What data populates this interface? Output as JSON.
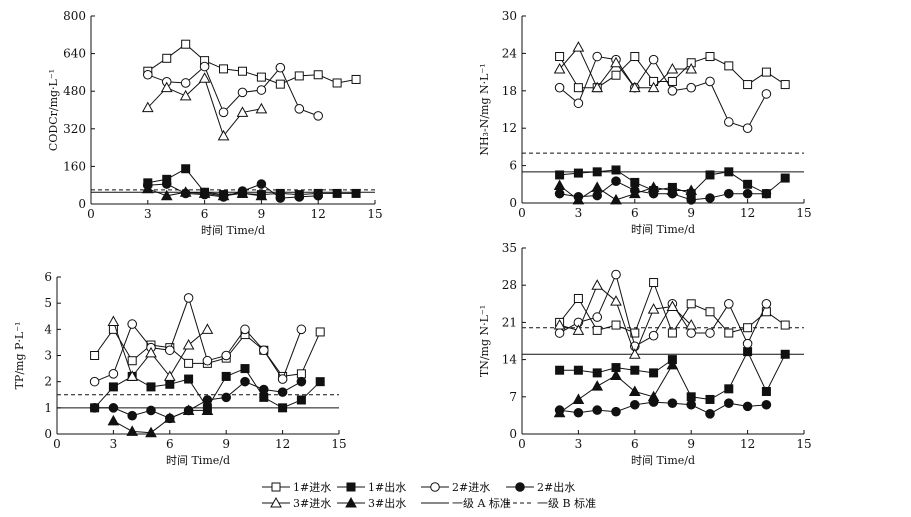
{
  "legend": {
    "items": [
      {
        "key": "in1",
        "label": "1#进水",
        "marker": "square-open",
        "line": "solid"
      },
      {
        "key": "out1",
        "label": "1#出水",
        "marker": "square-filled",
        "line": "solid"
      },
      {
        "key": "in2",
        "label": "2#进水",
        "marker": "circle-open",
        "line": "solid"
      },
      {
        "key": "out2",
        "label": "2#出水",
        "marker": "circle-filled",
        "line": "solid"
      },
      {
        "key": "in3",
        "label": "3#进水",
        "marker": "triangle-open",
        "line": "solid"
      },
      {
        "key": "out3",
        "label": "3#出水",
        "marker": "triangle-filled",
        "line": "solid"
      },
      {
        "key": "stdA",
        "label": "一级 A 标准",
        "marker": "none",
        "line": "solid"
      },
      {
        "key": "stdB",
        "label": "一级 B 标准",
        "marker": "none",
        "line": "dashed"
      }
    ]
  },
  "chart_data": [
    {
      "type": "line",
      "id": "cod",
      "xlabel": "时间 Time/d",
      "ylabel": "CODCr/mg·L⁻¹",
      "xlim": [
        0,
        15
      ],
      "ylim": [
        0,
        800
      ],
      "xticks": [
        0,
        3,
        6,
        9,
        12,
        15
      ],
      "yticks": [
        0,
        160,
        320,
        480,
        640,
        800
      ],
      "grid": false,
      "series": [
        {
          "key": "in1",
          "x": [
            3,
            4,
            5,
            6,
            7,
            8,
            9,
            10,
            11,
            12,
            13,
            14
          ],
          "y": [
            565,
            620,
            680,
            610,
            575,
            565,
            540,
            510,
            545,
            550,
            515,
            530
          ]
        },
        {
          "key": "out1",
          "x": [
            3,
            4,
            5,
            6,
            7,
            8,
            9,
            10,
            11,
            12,
            13,
            14
          ],
          "y": [
            90,
            105,
            150,
            50,
            40,
            45,
            40,
            45,
            40,
            45,
            45,
            45
          ]
        },
        {
          "key": "in2",
          "x": [
            3,
            4,
            5,
            6,
            7,
            8,
            9,
            10,
            11,
            12
          ],
          "y": [
            550,
            520,
            515,
            585,
            390,
            475,
            485,
            580,
            405,
            375
          ]
        },
        {
          "key": "out2",
          "x": [
            3,
            4,
            5,
            6,
            7,
            8,
            9,
            10,
            11,
            12
          ],
          "y": [
            80,
            85,
            45,
            40,
            30,
            55,
            85,
            25,
            30,
            35
          ]
        },
        {
          "key": "in3",
          "x": [
            3,
            4,
            5,
            6,
            7,
            8,
            9
          ],
          "y": [
            410,
            495,
            460,
            535,
            290,
            390,
            405
          ]
        },
        {
          "key": "out3",
          "x": [
            3,
            4,
            5,
            6,
            7,
            8,
            9
          ],
          "y": [
            65,
            35,
            50,
            45,
            35,
            45,
            35
          ]
        }
      ],
      "standards": {
        "stdA": 50,
        "stdB": 60
      }
    },
    {
      "type": "line",
      "id": "nh3",
      "xlabel": "时间 Time/d",
      "ylabel": "NH₃-N/mg N·L⁻¹",
      "xlim": [
        0,
        15
      ],
      "ylim": [
        0,
        30
      ],
      "xticks": [
        0,
        3,
        6,
        9,
        12,
        15
      ],
      "yticks": [
        0,
        6,
        12,
        18,
        24,
        30
      ],
      "grid": false,
      "series": [
        {
          "key": "in1",
          "x": [
            2,
            3,
            4,
            5,
            6,
            7,
            8,
            9,
            10,
            11,
            12,
            13,
            14
          ],
          "y": [
            23.5,
            18.5,
            18.5,
            20.5,
            23.5,
            19.5,
            19.5,
            22.5,
            23.5,
            22.0,
            19.0,
            21.0,
            19.0
          ]
        },
        {
          "key": "out1",
          "x": [
            2,
            3,
            4,
            5,
            6,
            7,
            8,
            9,
            10,
            11,
            12,
            13,
            14
          ],
          "y": [
            4.5,
            4.8,
            5.0,
            5.3,
            3.3,
            2.0,
            2.5,
            1.5,
            4.5,
            5.0,
            3.0,
            1.5,
            4.0
          ]
        },
        {
          "key": "in2",
          "x": [
            2,
            3,
            4,
            5,
            6,
            7,
            8,
            9,
            10,
            11,
            12,
            13
          ],
          "y": [
            18.5,
            16.0,
            23.5,
            23.0,
            18.5,
            23.0,
            18.0,
            18.5,
            19.5,
            13.0,
            12.0,
            17.5
          ]
        },
        {
          "key": "out2",
          "x": [
            2,
            3,
            4,
            5,
            6,
            7,
            8,
            9,
            10,
            11,
            12,
            13
          ],
          "y": [
            1.5,
            1.0,
            1.2,
            3.5,
            2.0,
            1.5,
            1.5,
            0.5,
            0.8,
            1.5,
            1.5,
            1.5
          ]
        },
        {
          "key": "in3",
          "x": [
            2,
            3,
            4,
            5,
            6,
            7,
            8,
            9
          ],
          "y": [
            21.5,
            25.0,
            18.5,
            22.5,
            18.5,
            18.5,
            21.5,
            21.5
          ]
        },
        {
          "key": "out3",
          "x": [
            2,
            3,
            4,
            5,
            6,
            7,
            8,
            9
          ],
          "y": [
            2.8,
            0.5,
            2.5,
            0.5,
            1.5,
            2.5,
            2.0,
            2.0
          ]
        }
      ],
      "standards": {
        "stdA": 5,
        "stdB": 8
      }
    },
    {
      "type": "line",
      "id": "tp",
      "xlabel": "时间 Time/d",
      "ylabel": "TP/mg P·L⁻¹",
      "xlim": [
        0,
        15
      ],
      "ylim": [
        0,
        6
      ],
      "xticks": [
        0,
        3,
        6,
        9,
        12,
        15
      ],
      "yticks": [
        0,
        1,
        2,
        3,
        4,
        5,
        6
      ],
      "grid": false,
      "series": [
        {
          "key": "in1",
          "x": [
            2,
            3,
            4,
            5,
            6,
            7,
            8,
            9,
            10,
            11,
            12,
            13,
            14
          ],
          "y": [
            3.0,
            4.0,
            2.8,
            3.4,
            3.3,
            2.7,
            2.7,
            2.9,
            3.8,
            3.2,
            2.2,
            2.3,
            3.9
          ]
        },
        {
          "key": "out1",
          "x": [
            2,
            3,
            4,
            5,
            6,
            7,
            8,
            9,
            10,
            11,
            12,
            13,
            14
          ],
          "y": [
            1.0,
            1.8,
            2.2,
            1.8,
            1.9,
            2.1,
            1.0,
            2.2,
            2.5,
            1.4,
            1.0,
            1.3,
            2.0
          ]
        },
        {
          "key": "in2",
          "x": [
            2,
            3,
            4,
            5,
            6,
            7,
            8,
            9,
            10,
            11,
            12,
            13
          ],
          "y": [
            2.0,
            2.3,
            4.2,
            3.3,
            3.2,
            5.2,
            2.8,
            3.0,
            4.0,
            3.2,
            2.1,
            4.0
          ]
        },
        {
          "key": "out2",
          "x": [
            2,
            3,
            4,
            5,
            6,
            7,
            8,
            9,
            10,
            11,
            12,
            13
          ],
          "y": [
            1.0,
            1.0,
            0.7,
            0.9,
            0.6,
            0.9,
            1.3,
            1.4,
            2.0,
            1.7,
            1.6,
            2.0
          ]
        },
        {
          "key": "in3",
          "x": [
            3,
            4,
            5,
            6,
            7,
            8
          ],
          "y": [
            4.3,
            2.2,
            3.1,
            2.2,
            3.4,
            4.0
          ]
        },
        {
          "key": "out3",
          "x": [
            3,
            4,
            5,
            6,
            7,
            8
          ],
          "y": [
            0.5,
            0.1,
            0.05,
            0.6,
            0.9,
            0.9
          ]
        }
      ],
      "standards": {
        "stdA": 1.0,
        "stdB": 1.5
      }
    },
    {
      "type": "line",
      "id": "tn",
      "xlabel": "时间 Time/d",
      "ylabel": "TN/mg N·L⁻¹",
      "xlim": [
        0,
        15
      ],
      "ylim": [
        0,
        35
      ],
      "xticks": [
        0,
        3,
        6,
        9,
        12,
        15
      ],
      "yticks": [
        0,
        7,
        14,
        21,
        28,
        35
      ],
      "grid": false,
      "series": [
        {
          "key": "in1",
          "x": [
            2,
            3,
            4,
            5,
            6,
            7,
            8,
            9,
            10,
            11,
            12,
            13,
            14
          ],
          "y": [
            21.0,
            25.5,
            19.5,
            20.5,
            19.0,
            28.5,
            19.0,
            24.5,
            23.0,
            19.0,
            20.0,
            23.0,
            20.5
          ]
        },
        {
          "key": "out1",
          "x": [
            2,
            3,
            4,
            5,
            6,
            7,
            8,
            9,
            10,
            11,
            12,
            13,
            14
          ],
          "y": [
            12.0,
            12.0,
            11.5,
            12.5,
            12.0,
            11.5,
            14.0,
            7.0,
            6.5,
            8.5,
            15.5,
            8.0,
            15.0
          ]
        },
        {
          "key": "in2",
          "x": [
            2,
            3,
            4,
            5,
            6,
            7,
            8,
            9,
            10,
            11,
            12,
            13
          ],
          "y": [
            19.0,
            21.0,
            22.0,
            30.0,
            16.5,
            18.5,
            24.5,
            19.0,
            19.0,
            24.5,
            17.0,
            24.5
          ]
        },
        {
          "key": "out2",
          "x": [
            2,
            3,
            4,
            5,
            6,
            7,
            8,
            9,
            10,
            11,
            12,
            13
          ],
          "y": [
            4.5,
            4.0,
            4.5,
            4.2,
            5.5,
            6.0,
            5.8,
            5.5,
            3.8,
            5.8,
            5.2,
            5.5
          ]
        },
        {
          "key": "in3",
          "x": [
            2,
            3,
            4,
            5,
            6,
            7,
            8,
            9
          ],
          "y": [
            20.5,
            19.5,
            28.0,
            25.0,
            15.0,
            23.5,
            24.0,
            20.5
          ]
        },
        {
          "key": "out3",
          "x": [
            2,
            3,
            4,
            5,
            6,
            7,
            8
          ],
          "y": [
            4.0,
            6.5,
            9.0,
            11.0,
            8.0,
            7.0,
            13.0
          ]
        }
      ],
      "standards": {
        "stdA": 15,
        "stdB": 20
      }
    }
  ]
}
